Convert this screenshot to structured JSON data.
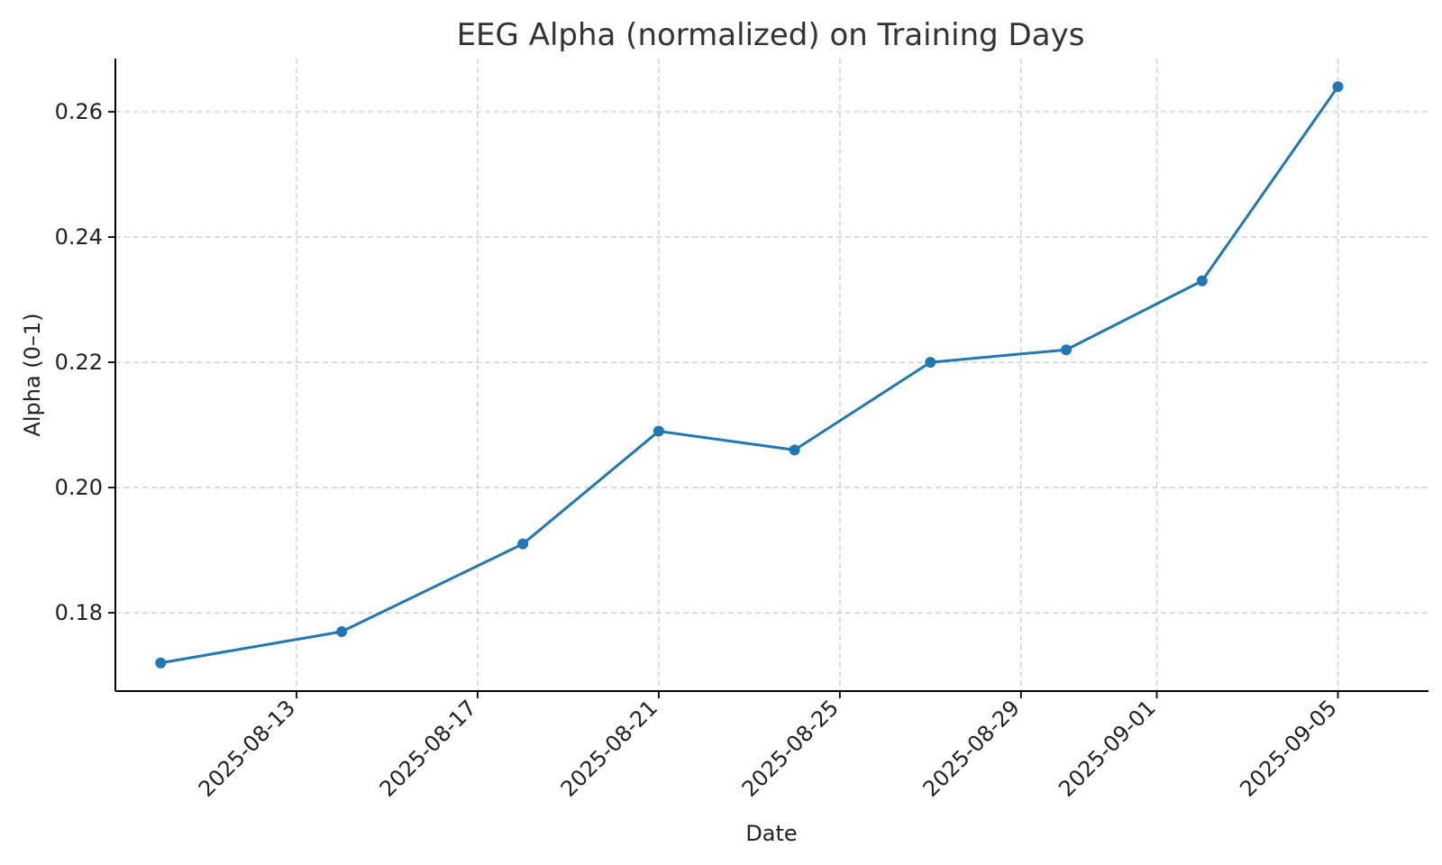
{
  "chart_data": {
    "type": "line",
    "title": "EEG Alpha (normalized) on Training Days",
    "xlabel": "Date",
    "ylabel": "Alpha (0–1)",
    "x_ticks": [
      "2025-08-13",
      "2025-08-17",
      "2025-08-21",
      "2025-08-25",
      "2025-08-29",
      "2025-09-01",
      "2025-09-05"
    ],
    "y_ticks": [
      "0.18",
      "0.20",
      "0.22",
      "0.24",
      "0.26"
    ],
    "xlim": [
      "2025-08-09",
      "2025-09-07"
    ],
    "ylim": [
      0.1675,
      0.2685
    ],
    "grid": true,
    "series": [
      {
        "color": "#1f77b4",
        "points": [
          {
            "x": "2025-08-10",
            "y": 0.172
          },
          {
            "x": "2025-08-14",
            "y": 0.177
          },
          {
            "x": "2025-08-18",
            "y": 0.191
          },
          {
            "x": "2025-08-21",
            "y": 0.209
          },
          {
            "x": "2025-08-24",
            "y": 0.206
          },
          {
            "x": "2025-08-27",
            "y": 0.22
          },
          {
            "x": "2025-08-30",
            "y": 0.222
          },
          {
            "x": "2025-09-02",
            "y": 0.233
          },
          {
            "x": "2025-09-05",
            "y": 0.264
          }
        ]
      }
    ]
  }
}
